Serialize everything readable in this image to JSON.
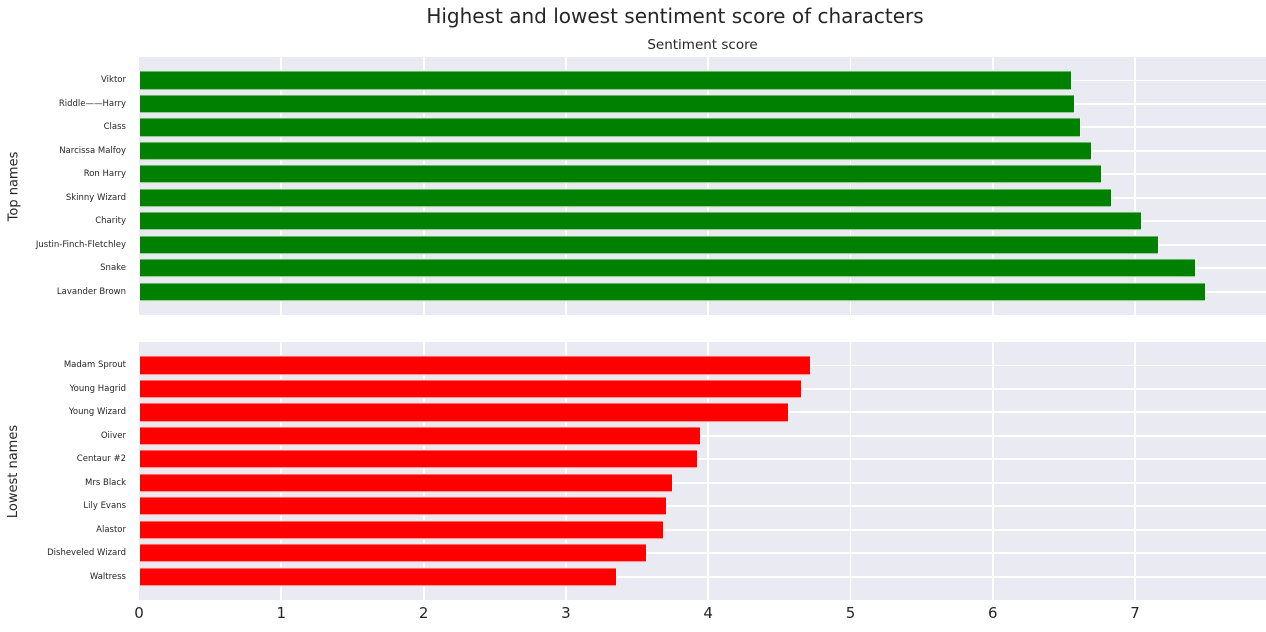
{
  "title": "Highest and lowest sentiment score of characters",
  "axes_title": "Sentiment score",
  "colors": {
    "figure_bg": "#ffffff",
    "axes_bg": "#eaeaf2",
    "grid": "#ffffff",
    "text": "#262626",
    "top_bars": "#008000",
    "bottom_bars": "#ff0000"
  },
  "chart_data": {
    "type": "bar",
    "orientation": "horizontal",
    "title": "Highest and lowest sentiment score of characters",
    "axes_title": "Sentiment score",
    "grid": true,
    "xlim": [
      0,
      7.92
    ],
    "xticks": [
      0,
      1,
      2,
      3,
      4,
      5,
      6,
      7
    ],
    "subplots": [
      {
        "ylabel": "Top names",
        "bar_color": "#008000",
        "categories": [
          "Viktor",
          "Riddle——Harry",
          "Class",
          "Narcissa Malfoy",
          "Ron Harry",
          "Skinny Wizard",
          "Charity",
          "Justin-Finch-Fletchley",
          "Snake",
          "Lavander Brown"
        ],
        "values": [
          6.56,
          6.58,
          6.62,
          6.7,
          6.77,
          6.84,
          7.05,
          7.17,
          7.43,
          7.5
        ]
      },
      {
        "ylabel": "Lowest names",
        "bar_color": "#ff0000",
        "categories": [
          "Madam Sprout",
          "Young Hagrid",
          "Young Wizard",
          "Oiiver",
          "Centaur #2",
          "Mrs Black",
          "Lily Evans",
          "Alastor",
          "Disheveled Wizard",
          "Waltress"
        ],
        "values": [
          4.72,
          4.66,
          4.57,
          3.95,
          3.93,
          3.75,
          3.71,
          3.69,
          3.57,
          3.36
        ]
      }
    ]
  }
}
